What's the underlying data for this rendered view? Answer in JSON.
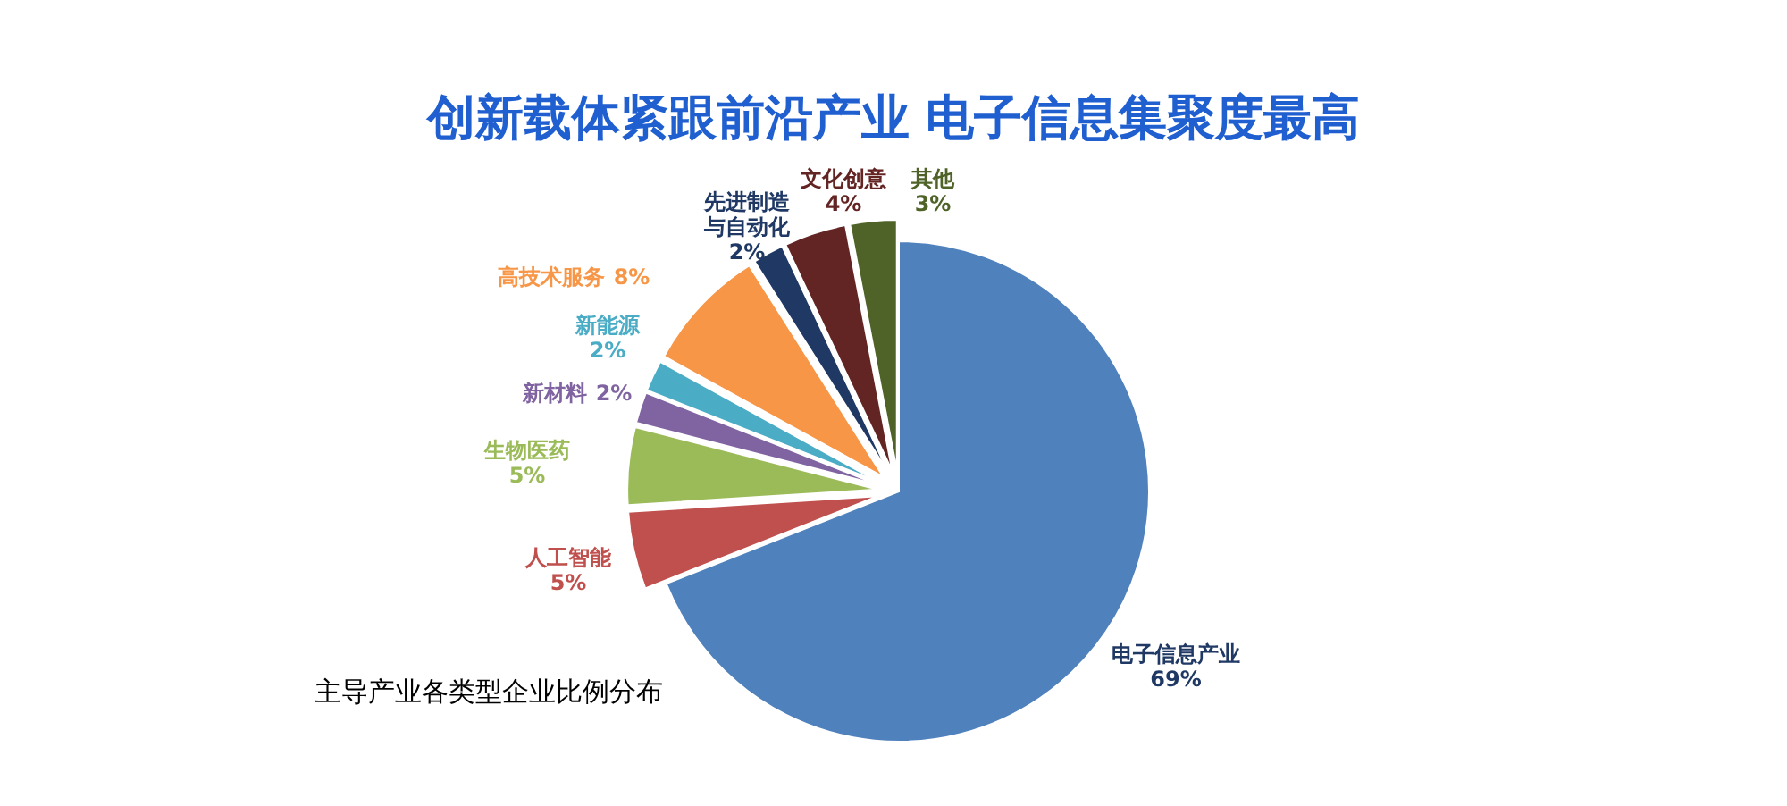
{
  "chart_data": {
    "type": "pie",
    "title": "创新载体紧跟前沿产业 电子信息集聚度最高",
    "categories": [
      "电子信息产业",
      "人工智能",
      "生物医药",
      "新材料",
      "新能源",
      "高技术服务",
      "先进制造与自动化",
      "文化创意",
      "其他"
    ],
    "values": [
      69,
      5,
      5,
      2,
      2,
      8,
      2,
      4,
      3
    ],
    "value_labels": [
      "69%",
      "5%",
      "5%",
      "2%",
      "2%",
      "8%",
      "2%",
      "4%",
      "3%"
    ],
    "colors": [
      "#4f81bd",
      "#c0504d",
      "#9bbb59",
      "#8064a2",
      "#4bacc6",
      "#f79646",
      "#1f3864",
      "#632523",
      "#4f6228"
    ],
    "annotations": [
      "主导产业各类型企业比例分布"
    ],
    "legend": false
  }
}
